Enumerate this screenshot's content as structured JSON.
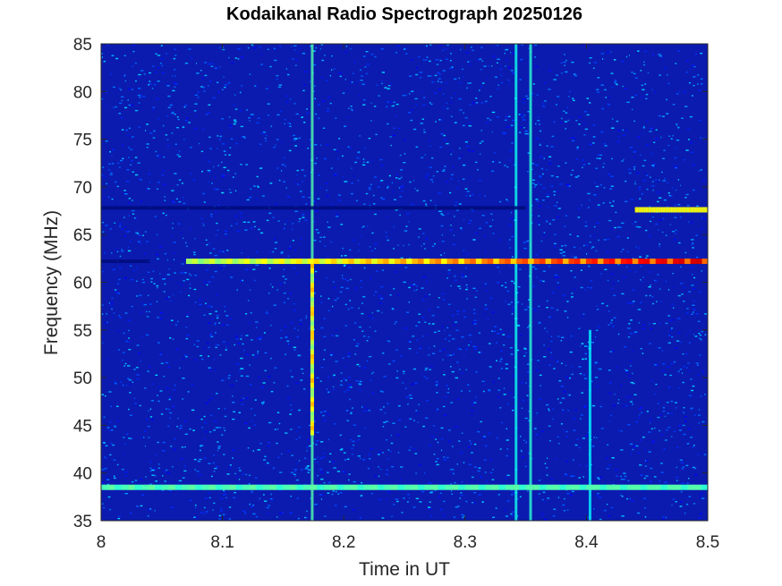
{
  "chart_data": {
    "type": "heatmap",
    "title": "Kodaikanal Radio Spectrograph  20250126",
    "xlabel": "Time in UT",
    "ylabel": "Frequency (MHz)",
    "xlim": [
      8.0,
      8.5
    ],
    "ylim": [
      35,
      85
    ],
    "x_ticks": [
      "8",
      "8.1",
      "8.2",
      "8.3",
      "8.4",
      "8.5"
    ],
    "y_ticks": [
      "35",
      "40",
      "45",
      "50",
      "55",
      "60",
      "65",
      "70",
      "75",
      "80",
      "85"
    ],
    "colormap": "jet",
    "background_color": "#0b1bb0",
    "grid": false,
    "features": [
      {
        "kind": "burst",
        "time": 8.174,
        "freq_range": [
          35,
          85
        ],
        "peak_freq_range": [
          44,
          62
        ],
        "intensity": 0.7
      },
      {
        "kind": "burst",
        "time": 8.342,
        "freq_range": [
          35,
          85
        ],
        "intensity": 0.45
      },
      {
        "kind": "burst",
        "time": 8.354,
        "freq_range": [
          35,
          85
        ],
        "intensity": 0.55
      },
      {
        "kind": "burst",
        "time": 8.403,
        "freq_range": [
          35,
          55
        ],
        "intensity": 0.35
      },
      {
        "kind": "band",
        "freq": 62.2,
        "time_range": [
          8.07,
          8.5
        ],
        "intensity_start": 0.4,
        "intensity_end": 1.0
      },
      {
        "kind": "band",
        "freq": 67.6,
        "time_range": [
          8.44,
          8.5
        ],
        "intensity": 0.55
      },
      {
        "kind": "band",
        "freq": 38.5,
        "time_range": [
          8.0,
          8.5
        ],
        "intensity": 0.25
      },
      {
        "kind": "dark-band",
        "freq": 67.8,
        "time_range": [
          8.0,
          8.35
        ]
      },
      {
        "kind": "dark-band",
        "freq": 62.2,
        "time_range": [
          8.0,
          8.04
        ]
      }
    ]
  }
}
